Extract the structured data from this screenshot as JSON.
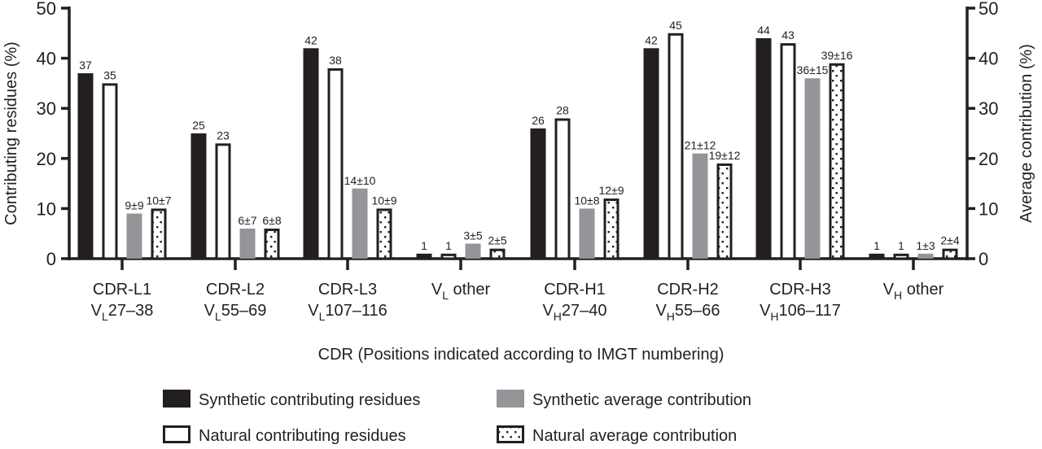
{
  "chart_data": {
    "type": "bar",
    "ylabel": "Contributing residues (%)",
    "y2label": "Average contribution (%)",
    "xlabel": "CDR (Positions indicated according to IMGT numbering)",
    "ylim": [
      0,
      50
    ],
    "y2lim": [
      0,
      50
    ],
    "yticks": [
      "0",
      "10",
      "20",
      "30",
      "40",
      "50"
    ],
    "categories": [
      {
        "line1": [
          {
            "t": "CDR-L1"
          }
        ],
        "line2": [
          {
            "t": "V"
          },
          {
            "t": "L",
            "sub": true
          },
          {
            "t": "27–38"
          }
        ]
      },
      {
        "line1": [
          {
            "t": "CDR-L2"
          }
        ],
        "line2": [
          {
            "t": "V"
          },
          {
            "t": "L",
            "sub": true
          },
          {
            "t": "55–69"
          }
        ]
      },
      {
        "line1": [
          {
            "t": "CDR-L3"
          }
        ],
        "line2": [
          {
            "t": "V"
          },
          {
            "t": "L",
            "sub": true
          },
          {
            "t": "107–116"
          }
        ]
      },
      {
        "line1": [
          {
            "t": "V"
          },
          {
            "t": "L",
            "sub": true
          },
          {
            "t": " other"
          }
        ],
        "line2": []
      },
      {
        "line1": [
          {
            "t": "CDR-H1"
          }
        ],
        "line2": [
          {
            "t": "V"
          },
          {
            "t": "H",
            "sub": true
          },
          {
            "t": "27–40"
          }
        ]
      },
      {
        "line1": [
          {
            "t": "CDR-H2"
          }
        ],
        "line2": [
          {
            "t": "V"
          },
          {
            "t": "H",
            "sub": true
          },
          {
            "t": "55–66"
          }
        ]
      },
      {
        "line1": [
          {
            "t": "CDR-H3"
          }
        ],
        "line2": [
          {
            "t": "V"
          },
          {
            "t": "H",
            "sub": true
          },
          {
            "t": "106–117"
          }
        ]
      },
      {
        "line1": [
          {
            "t": "V"
          },
          {
            "t": "H",
            "sub": true
          },
          {
            "t": " other"
          }
        ],
        "line2": []
      }
    ],
    "series": [
      {
        "name": "Synthetic contributing residues",
        "style": "black",
        "axis": "left",
        "values": [
          37,
          25,
          42,
          1,
          26,
          42,
          44,
          1
        ],
        "labels": [
          "37",
          "25",
          "42",
          "1",
          "26",
          "42",
          "44",
          "1"
        ]
      },
      {
        "name": "Natural contributing residues",
        "style": "white",
        "axis": "left",
        "values": [
          35,
          23,
          38,
          1,
          28,
          45,
          43,
          1
        ],
        "labels": [
          "35",
          "23",
          "38",
          "1",
          "28",
          "45",
          "43",
          "1"
        ]
      },
      {
        "name": "Synthetic average contribution",
        "style": "grey",
        "axis": "right",
        "values": [
          9,
          6,
          14,
          3,
          10,
          21,
          36,
          1
        ],
        "errors": [
          9,
          7,
          10,
          5,
          8,
          12,
          15,
          3
        ],
        "labels": [
          "9±9",
          "6±7",
          "14±10",
          "3±5",
          "10±8",
          "21±12",
          "36±15",
          "1±3"
        ]
      },
      {
        "name": "Natural average contribution",
        "style": "dotted",
        "axis": "right",
        "values": [
          10,
          6,
          10,
          2,
          12,
          19,
          39,
          2
        ],
        "errors": [
          7,
          8,
          9,
          5,
          9,
          12,
          16,
          4
        ],
        "labels": [
          "10±7",
          "6±8",
          "10±9",
          "2±5",
          "12±9",
          "19±12",
          "39±16",
          "2±4"
        ]
      }
    ],
    "legend": "bottom-center",
    "grid": false,
    "colors": {
      "black": "#231f20",
      "grey": "#939598",
      "white": "#ffffff"
    }
  }
}
